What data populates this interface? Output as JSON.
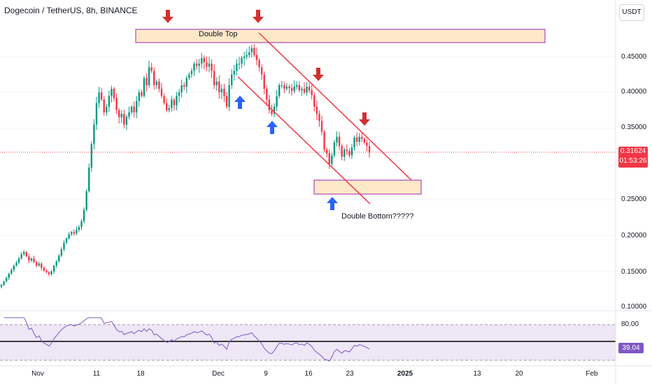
{
  "header": {
    "title": "Dogecoin / TetherUS, 8h, BINANCE",
    "currency_button": "USDT"
  },
  "price_axis": {
    "ticks": [
      "0.45000",
      "0.40000",
      "0.35000",
      "0.25000",
      "0.20000",
      "0.15000",
      "0.10000"
    ],
    "current_price": "0.31624",
    "countdown": "01:53:26"
  },
  "rsi_axis": {
    "upper": "80.00",
    "value": "39.04"
  },
  "time_axis": {
    "labels": [
      "Nov",
      "11",
      "18",
      "Dec",
      "9",
      "16",
      "23",
      "2025",
      "13",
      "20",
      "Feb"
    ],
    "bold_label": "2025"
  },
  "annotations": {
    "double_top": "Double Top",
    "double_bottom": "Double Bottom?????"
  },
  "colors": {
    "up": "#089981",
    "down": "#f23645",
    "zone_fill": "#fde9c8",
    "zone_border": "#9c27b0",
    "channel": "#f23645",
    "down_arrow": "#d32f2f",
    "up_arrow": "#2962ff",
    "rsi_line": "#7e57c2",
    "rsi_band": "#ede7f6"
  },
  "chart_data": {
    "type": "candlestick",
    "symbol": "DOGE/USDT",
    "interval": "8h",
    "close_series": [
      0.131,
      0.136,
      0.141,
      0.147,
      0.152,
      0.158,
      0.162,
      0.168,
      0.174,
      0.177,
      0.171,
      0.165,
      0.168,
      0.163,
      0.158,
      0.161,
      0.155,
      0.151,
      0.149,
      0.146,
      0.15,
      0.158,
      0.164,
      0.172,
      0.181,
      0.19,
      0.196,
      0.202,
      0.205,
      0.203,
      0.208,
      0.212,
      0.22,
      0.236,
      0.262,
      0.295,
      0.328,
      0.355,
      0.385,
      0.4,
      0.39,
      0.372,
      0.38,
      0.395,
      0.405,
      0.392,
      0.375,
      0.365,
      0.37,
      0.355,
      0.366,
      0.372,
      0.38,
      0.372,
      0.388,
      0.4,
      0.395,
      0.42,
      0.41,
      0.435,
      0.43,
      0.41,
      0.415,
      0.405,
      0.395,
      0.385,
      0.375,
      0.378,
      0.39,
      0.382,
      0.395,
      0.4,
      0.41,
      0.408,
      0.42,
      0.425,
      0.43,
      0.44,
      0.437,
      0.44,
      0.448,
      0.442,
      0.436,
      0.44,
      0.43,
      0.41,
      0.415,
      0.4,
      0.405,
      0.395,
      0.38,
      0.41,
      0.425,
      0.43,
      0.44,
      0.44,
      0.448,
      0.45,
      0.452,
      0.456,
      0.462,
      0.452,
      0.445,
      0.435,
      0.425,
      0.405,
      0.39,
      0.375,
      0.37,
      0.38,
      0.395,
      0.41,
      0.41,
      0.405,
      0.408,
      0.406,
      0.402,
      0.408,
      0.41,
      0.403,
      0.405,
      0.4,
      0.408,
      0.403,
      0.396,
      0.38,
      0.37,
      0.36,
      0.345,
      0.32,
      0.315,
      0.3,
      0.312,
      0.33,
      0.338,
      0.325,
      0.31,
      0.32,
      0.318,
      0.312,
      0.323,
      0.337,
      0.331,
      0.338,
      0.335,
      0.33,
      0.325,
      0.316
    ],
    "price_ticks": [
      0.45,
      0.4,
      0.35,
      0.25,
      0.2,
      0.15,
      0.1
    ],
    "current_price": 0.31624,
    "double_top_zone": [
      0.463,
      0.482
    ],
    "double_bottom_zone": [
      0.262,
      0.282
    ],
    "rsi_current": 39.04,
    "rsi_upper": 80
  }
}
